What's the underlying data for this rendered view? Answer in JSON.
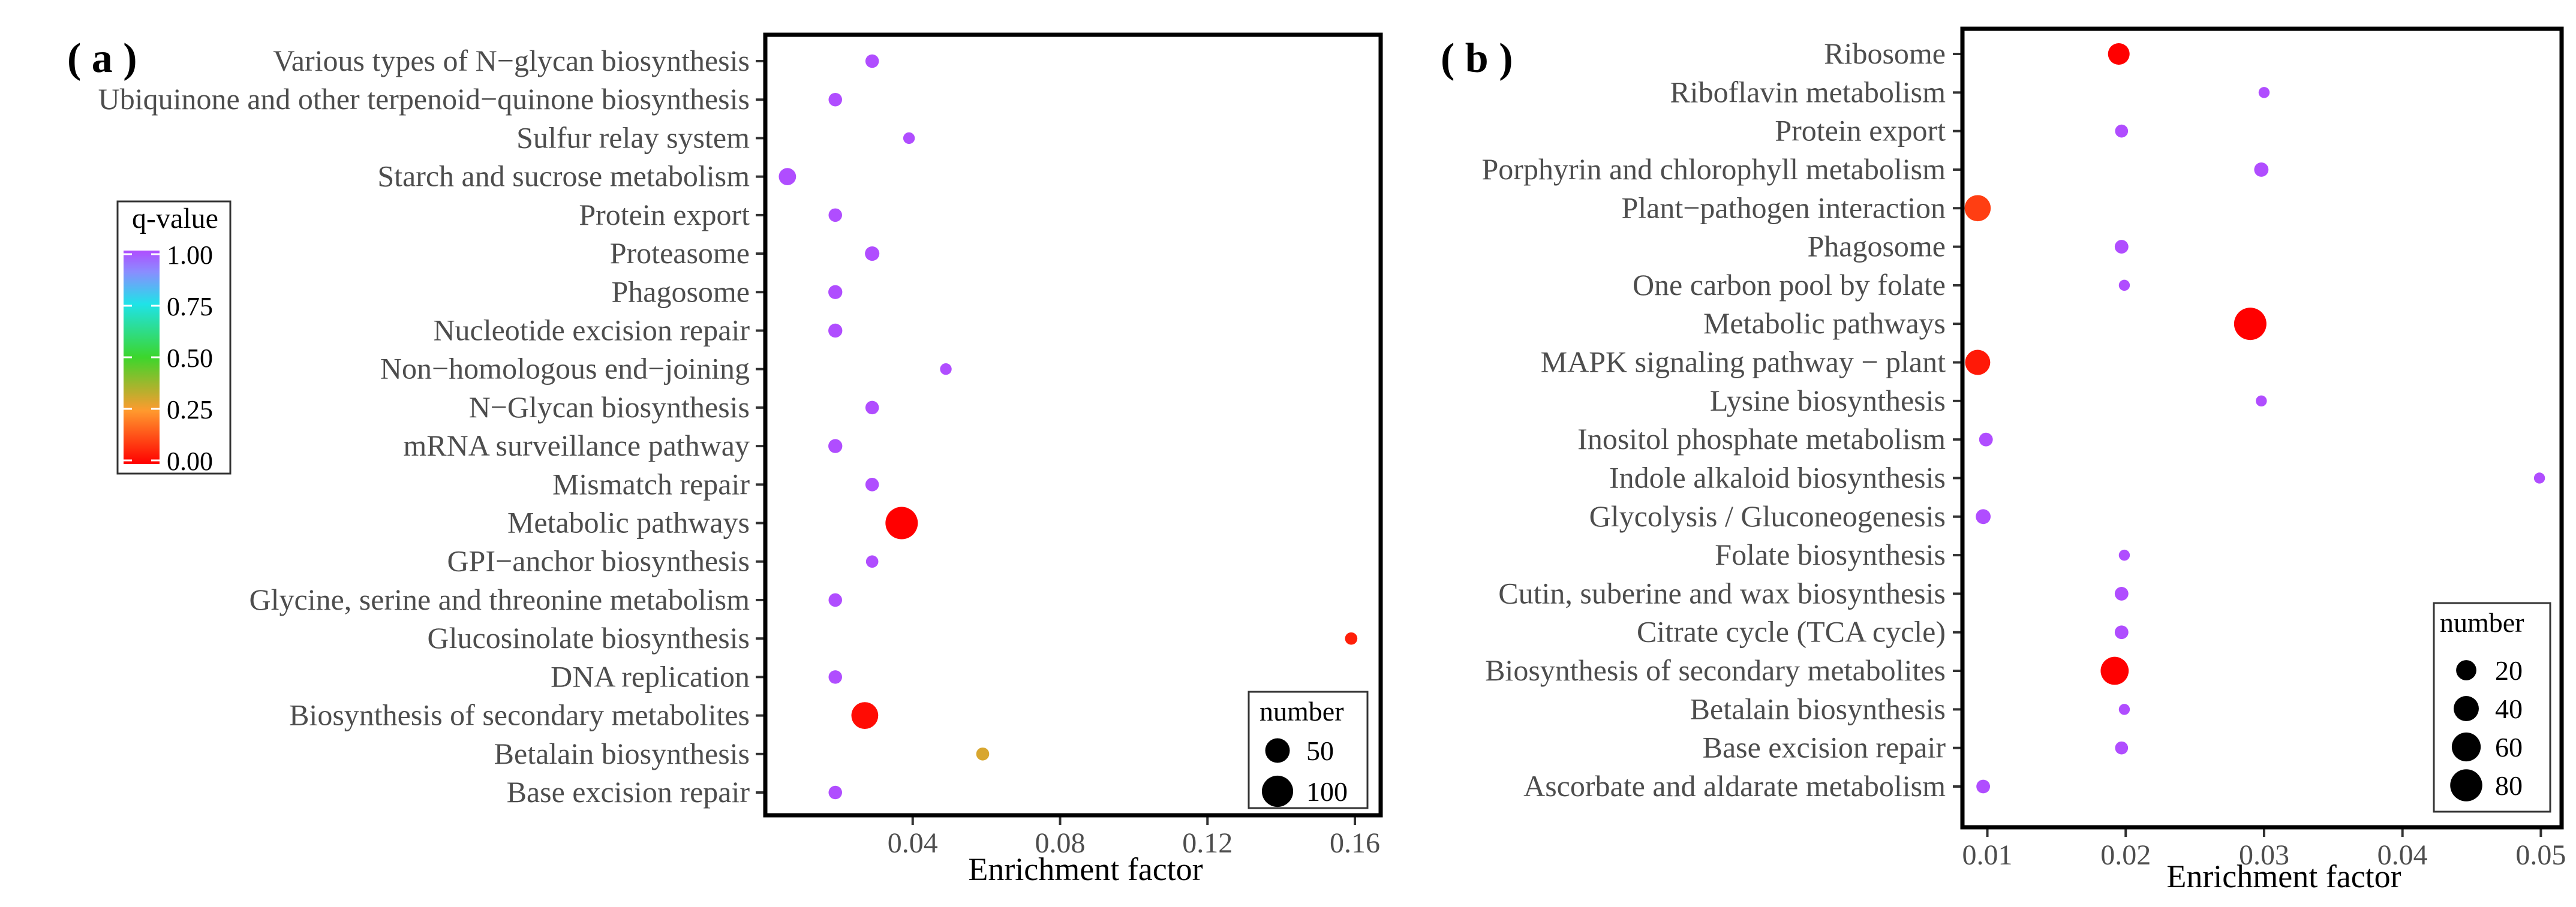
{
  "chart_data": [
    {
      "type": "scatter",
      "panel_label": "( a )",
      "xlabel": "Enrichment factor",
      "ylabel": "",
      "xlim": [
        0.0,
        0.167
      ],
      "xticks": [
        0.04,
        0.08,
        0.12,
        0.16
      ],
      "xtick_labels": [
        "0.04",
        "0.08",
        "0.12",
        "0.16"
      ],
      "grid": false,
      "categories": [
        "Various types of N−glycan biosynthesis",
        "Ubiquinone and other terpenoid−quinone biosynthesis",
        "Sulfur relay system",
        "Starch and sucrose metabolism",
        "Protein export",
        "Proteasome",
        "Phagosome",
        "Nucleotide excision repair",
        "Non−homologous end−joining",
        "N−Glycan biosynthesis",
        "mRNA surveillance pathway",
        "Mismatch repair",
        "Metabolic pathways",
        "GPI−anchor biosynthesis",
        "Glycine, serine and threonine metabolism",
        "Glucosinolate biosynthesis",
        "DNA replication",
        "Biosynthesis of secondary metabolites",
        "Betalain biosynthesis",
        "Base excision repair"
      ],
      "points": [
        {
          "category": "Various types of N−glycan biosynthesis",
          "x": 0.029,
          "number": 5,
          "q": 1.0
        },
        {
          "category": "Ubiquinone and other terpenoid−quinone biosynthesis",
          "x": 0.019,
          "number": 5,
          "q": 1.0
        },
        {
          "category": "Sulfur relay system",
          "x": 0.039,
          "number": 2,
          "q": 1.0
        },
        {
          "category": "Starch and sucrose metabolism",
          "x": 0.006,
          "number": 15,
          "q": 1.0
        },
        {
          "category": "Protein export",
          "x": 0.019,
          "number": 5,
          "q": 1.0
        },
        {
          "category": "Proteasome",
          "x": 0.029,
          "number": 7,
          "q": 1.0
        },
        {
          "category": "Phagosome",
          "x": 0.019,
          "number": 6,
          "q": 1.0
        },
        {
          "category": "Nucleotide excision repair",
          "x": 0.019,
          "number": 6,
          "q": 1.0
        },
        {
          "category": "Non−homologous end−joining",
          "x": 0.049,
          "number": 2,
          "q": 1.0
        },
        {
          "category": "N−Glycan biosynthesis",
          "x": 0.029,
          "number": 5,
          "q": 1.0
        },
        {
          "category": "mRNA surveillance pathway",
          "x": 0.019,
          "number": 6,
          "q": 1.0
        },
        {
          "category": "Mismatch repair",
          "x": 0.029,
          "number": 5,
          "q": 1.0
        },
        {
          "category": "Metabolic pathways",
          "x": 0.037,
          "number": 110,
          "q": 0.0
        },
        {
          "category": "GPI−anchor biosynthesis",
          "x": 0.029,
          "number": 3,
          "q": 1.0
        },
        {
          "category": "Glycine, serine and threonine metabolism",
          "x": 0.019,
          "number": 5,
          "q": 1.0
        },
        {
          "category": "Glucosinolate biosynthesis",
          "x": 0.159,
          "number": 3,
          "q": 0.05
        },
        {
          "category": "DNA replication",
          "x": 0.019,
          "number": 5,
          "q": 1.0
        },
        {
          "category": "Biosynthesis of secondary metabolites",
          "x": 0.027,
          "number": 65,
          "q": 0.02
        },
        {
          "category": "Betalain biosynthesis",
          "x": 0.059,
          "number": 4,
          "q": 0.3
        },
        {
          "category": "Base excision repair",
          "x": 0.019,
          "number": 5,
          "q": 1.0
        }
      ],
      "legend": {
        "color_title": "q-value",
        "color_ticks": [
          "1.00",
          "0.75",
          "0.50",
          "0.25",
          "0.00"
        ],
        "size_title": "number",
        "size_values": [
          50,
          100
        ],
        "size_labels": [
          "50",
          "100"
        ],
        "color_placement": "left",
        "size_placement": "bottom-right"
      }
    },
    {
      "type": "scatter",
      "panel_label": "( b )",
      "xlabel": "Enrichment factor",
      "ylabel": "",
      "xlim": [
        0.0082,
        0.0515
      ],
      "xticks": [
        0.01,
        0.02,
        0.03,
        0.04,
        0.05
      ],
      "xtick_labels": [
        "0.01",
        "0.02",
        "0.03",
        "0.04",
        "0.05"
      ],
      "grid": false,
      "categories": [
        "Ribosome",
        "Riboflavin metabolism",
        "Protein export",
        "Porphyrin and chlorophyll metabolism",
        "Plant−pathogen interaction",
        "Phagosome",
        "One carbon pool by folate",
        "Metabolic pathways",
        "MAPK signaling pathway − plant",
        "Lysine biosynthesis",
        "Inositol phosphate metabolism",
        "Indole alkaloid biosynthesis",
        "Glycolysis / Gluconeogenesis",
        "Folate biosynthesis",
        "Cutin, suberine and wax biosynthesis",
        "Citrate cycle (TCA cycle)",
        "Biosynthesis of secondary metabolites",
        "Betalain biosynthesis",
        "Base excision repair",
        "Ascorbate and aldarate metabolism"
      ],
      "points": [
        {
          "category": "Ribosome",
          "x": 0.0195,
          "number": 25,
          "q": 0.0
        },
        {
          "category": "Riboflavin metabolism",
          "x": 0.03,
          "number": 1,
          "q": 1.0
        },
        {
          "category": "Protein export",
          "x": 0.0197,
          "number": 3,
          "q": 1.0
        },
        {
          "category": "Porphyrin and chlorophyll metabolism",
          "x": 0.0298,
          "number": 5,
          "q": 1.0
        },
        {
          "category": "Plant−pathogen interaction",
          "x": 0.0093,
          "number": 45,
          "q": 0.1
        },
        {
          "category": "Phagosome",
          "x": 0.0197,
          "number": 4,
          "q": 1.0
        },
        {
          "category": "One carbon pool by folate",
          "x": 0.0199,
          "number": 1,
          "q": 1.0
        },
        {
          "category": "Metabolic pathways",
          "x": 0.029,
          "number": 82,
          "q": 0.0
        },
        {
          "category": "MAPK signaling pathway − plant",
          "x": 0.0093,
          "number": 40,
          "q": 0.04
        },
        {
          "category": "Lysine biosynthesis",
          "x": 0.0298,
          "number": 1,
          "q": 1.0
        },
        {
          "category": "Inositol phosphate metabolism",
          "x": 0.0099,
          "number": 4,
          "q": 1.0
        },
        {
          "category": "Indole alkaloid biosynthesis",
          "x": 0.0499,
          "number": 1,
          "q": 1.0
        },
        {
          "category": "Glycolysis / Gluconeogenesis",
          "x": 0.0097,
          "number": 6,
          "q": 1.0
        },
        {
          "category": "Folate biosynthesis",
          "x": 0.0199,
          "number": 1,
          "q": 1.0
        },
        {
          "category": "Cutin, suberine and wax biosynthesis",
          "x": 0.0197,
          "number": 4,
          "q": 1.0
        },
        {
          "category": "Citrate cycle (TCA cycle)",
          "x": 0.0197,
          "number": 4,
          "q": 1.0
        },
        {
          "category": "Biosynthesis of secondary metabolites",
          "x": 0.0192,
          "number": 55,
          "q": 0.0
        },
        {
          "category": "Betalain biosynthesis",
          "x": 0.0199,
          "number": 1,
          "q": 1.0
        },
        {
          "category": "Base excision repair",
          "x": 0.0197,
          "number": 3,
          "q": 1.0
        },
        {
          "category": "Ascorbate and aldarate metabolism",
          "x": 0.0097,
          "number": 4,
          "q": 1.0
        }
      ],
      "legend": {
        "size_title": "number",
        "size_values": [
          20,
          40,
          60,
          80
        ],
        "size_labels": [
          "20",
          "40",
          "60",
          "80"
        ],
        "size_placement": "bottom-right"
      }
    }
  ]
}
